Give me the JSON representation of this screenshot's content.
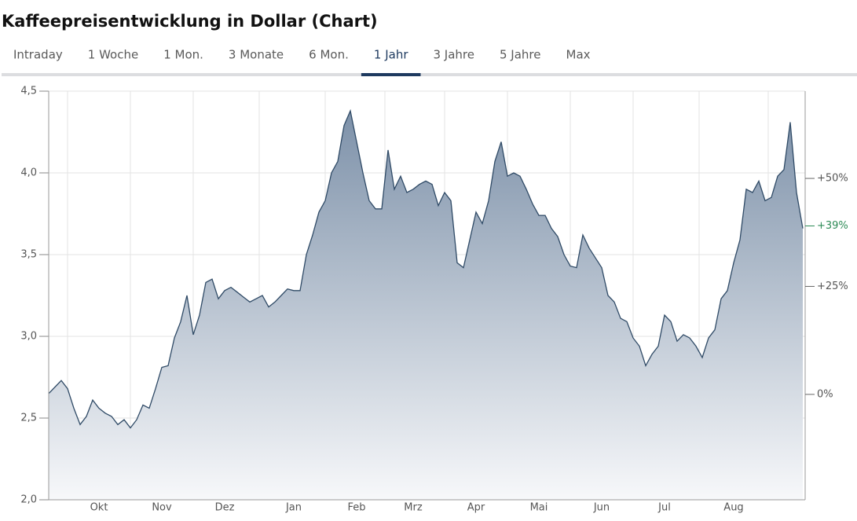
{
  "header": {
    "title": "Kaffeepreisentwicklung in Dollar (Chart)"
  },
  "tabs": [
    "Intraday",
    "1 Woche",
    "1 Mon.",
    "3 Monate",
    "6 Mon.",
    "1 Jahr",
    "3 Jahre",
    "5 Jahre",
    "Max"
  ],
  "active_tab": 5,
  "chart_data": {
    "type": "area",
    "color": "#2f4a66",
    "fill_top": "#7d91a9",
    "fill_bottom": "#f7f8fa",
    "grid": true,
    "categories": [
      null,
      null,
      null,
      null,
      null,
      null,
      null,
      null,
      "Okt",
      null,
      null,
      null,
      null,
      null,
      null,
      null,
      null,
      null,
      "Nov",
      null,
      null,
      null,
      null,
      null,
      null,
      null,
      null,
      null,
      "Dez",
      null,
      null,
      null,
      null,
      null,
      null,
      null,
      null,
      null,
      null,
      "Jan",
      null,
      null,
      null,
      null,
      null,
      null,
      null,
      null,
      null,
      "Feb",
      null,
      null,
      null,
      null,
      null,
      null,
      null,
      null,
      "Mrz",
      null,
      null,
      null,
      null,
      null,
      null,
      null,
      null,
      null,
      "Apr",
      null,
      null,
      null,
      null,
      null,
      null,
      null,
      null,
      null,
      "Mai",
      null,
      null,
      null,
      null,
      null,
      null,
      null,
      null,
      null,
      "Jun",
      null,
      null,
      null,
      null,
      null,
      null,
      null,
      null,
      null,
      "Jul",
      null,
      null,
      null,
      null,
      null,
      null,
      null,
      null,
      null,
      null,
      "Aug",
      null,
      null,
      null,
      null,
      null,
      null,
      null,
      null,
      null,
      null,
      null
    ],
    "values": [
      2.65,
      2.69,
      2.73,
      2.68,
      2.56,
      2.46,
      2.51,
      2.61,
      2.56,
      2.53,
      2.51,
      2.46,
      2.49,
      2.44,
      2.49,
      2.58,
      2.56,
      2.68,
      2.81,
      2.82,
      2.99,
      3.09,
      3.25,
      3.01,
      3.13,
      3.33,
      3.35,
      3.23,
      3.28,
      3.3,
      3.27,
      3.24,
      3.21,
      3.23,
      3.25,
      3.18,
      3.21,
      3.25,
      3.29,
      3.28,
      3.28,
      3.5,
      3.62,
      3.76,
      3.83,
      4.0,
      4.07,
      4.29,
      4.38,
      4.19,
      4.0,
      3.83,
      3.78,
      3.78,
      4.14,
      3.9,
      3.98,
      3.88,
      3.9,
      3.93,
      3.95,
      3.93,
      3.8,
      3.88,
      3.83,
      3.45,
      3.42,
      3.59,
      3.76,
      3.69,
      3.83,
      4.07,
      4.19,
      3.98,
      4.0,
      3.98,
      3.9,
      3.81,
      3.74,
      3.74,
      3.66,
      3.61,
      3.5,
      3.43,
      3.42,
      3.62,
      3.54,
      3.48,
      3.42,
      3.25,
      3.21,
      3.11,
      3.09,
      2.99,
      2.94,
      2.82,
      2.89,
      2.94,
      3.13,
      3.09,
      2.97,
      3.01,
      2.99,
      2.94,
      2.87,
      2.99,
      3.04,
      3.23,
      3.28,
      3.45,
      3.59,
      3.9,
      3.88,
      3.95,
      3.83,
      3.85,
      3.98,
      4.02,
      4.31,
      3.88,
      3.66
    ],
    "ylim": [
      2.0,
      4.5
    ],
    "yticks": [
      {
        "value": 2.0,
        "label": "2,0"
      },
      {
        "value": 2.5,
        "label": "2,5"
      },
      {
        "value": 3.0,
        "label": "3,0"
      },
      {
        "value": 3.5,
        "label": "3,5"
      },
      {
        "value": 4.0,
        "label": "4,0"
      },
      {
        "value": 4.5,
        "label": "4,5"
      }
    ],
    "y2lim": [
      -24.4,
      70.2
    ],
    "y2ticks": [
      {
        "value": 0,
        "label": "0%"
      },
      {
        "value": 25,
        "label": "+25%"
      },
      {
        "value": 50,
        "label": "+50%"
      }
    ],
    "y2_current": {
      "value": 39,
      "label": "+39%",
      "color": "#2e8b57"
    }
  }
}
